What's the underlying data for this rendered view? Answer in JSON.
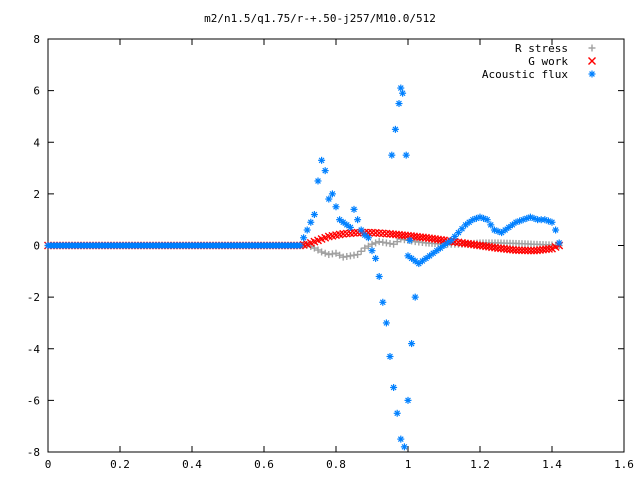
{
  "chart_data": {
    "type": "scatter",
    "title": "m2/n1.5/q1.75/r-+.50-j257/M10.0/512",
    "xlabel": "",
    "ylabel": "",
    "xlim": [
      0,
      1.6
    ],
    "ylim": [
      -8,
      8
    ],
    "xticks": [
      "0",
      "0.2",
      "0.4",
      "0.6",
      "0.8",
      "1",
      "1.2",
      "1.4",
      "1.6"
    ],
    "yticks": [
      "8",
      "6",
      "4",
      "2",
      "0",
      "-2",
      "-4",
      "-6",
      "-8"
    ],
    "grid": false,
    "legend_position": "top-right",
    "series": [
      {
        "name": "R stress",
        "marker": "+",
        "color": "#a0a0a0",
        "points": [
          [
            0,
            0
          ],
          [
            0.1,
            0
          ],
          [
            0.2,
            0
          ],
          [
            0.3,
            0
          ],
          [
            0.4,
            0
          ],
          [
            0.5,
            0
          ],
          [
            0.6,
            0
          ],
          [
            0.7,
            0
          ],
          [
            0.72,
            0.02
          ],
          [
            0.74,
            -0.1
          ],
          [
            0.76,
            -0.25
          ],
          [
            0.78,
            -0.35
          ],
          [
            0.8,
            -0.3
          ],
          [
            0.82,
            -0.45
          ],
          [
            0.84,
            -0.4
          ],
          [
            0.86,
            -0.35
          ],
          [
            0.88,
            -0.1
          ],
          [
            0.9,
            0.05
          ],
          [
            0.92,
            0.15
          ],
          [
            0.94,
            0.1
          ],
          [
            0.96,
            0.05
          ],
          [
            0.98,
            0.25
          ],
          [
            1.0,
            0.2
          ],
          [
            1.02,
            0.15
          ],
          [
            1.05,
            0.1
          ],
          [
            1.1,
            0.05
          ],
          [
            1.15,
            0.05
          ],
          [
            1.2,
            0.1
          ],
          [
            1.25,
            0.1
          ],
          [
            1.3,
            0.08
          ],
          [
            1.35,
            0.05
          ],
          [
            1.4,
            0.02
          ],
          [
            1.42,
            0
          ]
        ]
      },
      {
        "name": "G work",
        "marker": "x",
        "color": "#ff0000",
        "points": [
          [
            0,
            0
          ],
          [
            0.1,
            0
          ],
          [
            0.2,
            0
          ],
          [
            0.3,
            0
          ],
          [
            0.4,
            0
          ],
          [
            0.5,
            0
          ],
          [
            0.6,
            0
          ],
          [
            0.7,
            0
          ],
          [
            0.72,
            0.05
          ],
          [
            0.75,
            0.2
          ],
          [
            0.78,
            0.35
          ],
          [
            0.82,
            0.45
          ],
          [
            0.86,
            0.5
          ],
          [
            0.9,
            0.5
          ],
          [
            0.95,
            0.45
          ],
          [
            1.0,
            0.38
          ],
          [
            1.05,
            0.3
          ],
          [
            1.1,
            0.2
          ],
          [
            1.15,
            0.1
          ],
          [
            1.2,
            0
          ],
          [
            1.25,
            -0.1
          ],
          [
            1.3,
            -0.18
          ],
          [
            1.35,
            -0.2
          ],
          [
            1.4,
            -0.12
          ],
          [
            1.42,
            0
          ]
        ]
      },
      {
        "name": "Acoustic flux",
        "marker": "*",
        "color": "#0080ff",
        "points": [
          [
            0,
            0
          ],
          [
            0.05,
            0
          ],
          [
            0.1,
            0
          ],
          [
            0.15,
            0
          ],
          [
            0.2,
            0
          ],
          [
            0.25,
            0
          ],
          [
            0.3,
            0
          ],
          [
            0.35,
            0
          ],
          [
            0.4,
            0
          ],
          [
            0.45,
            0
          ],
          [
            0.5,
            0
          ],
          [
            0.55,
            0
          ],
          [
            0.6,
            0
          ],
          [
            0.65,
            0
          ],
          [
            0.7,
            0
          ],
          [
            0.71,
            0.3
          ],
          [
            0.72,
            0.6
          ],
          [
            0.73,
            0.9
          ],
          [
            0.74,
            1.2
          ],
          [
            0.75,
            2.5
          ],
          [
            0.76,
            3.3
          ],
          [
            0.77,
            2.9
          ],
          [
            0.78,
            1.8
          ],
          [
            0.79,
            2.0
          ],
          [
            0.8,
            1.5
          ],
          [
            0.81,
            1.0
          ],
          [
            0.82,
            0.9
          ],
          [
            0.83,
            0.8
          ],
          [
            0.84,
            0.7
          ],
          [
            0.85,
            1.4
          ],
          [
            0.86,
            1.0
          ],
          [
            0.87,
            0.6
          ],
          [
            0.88,
            0.4
          ],
          [
            0.89,
            0.3
          ],
          [
            0.9,
            -0.2
          ],
          [
            0.91,
            -0.5
          ],
          [
            0.92,
            -1.2
          ],
          [
            0.93,
            -2.2
          ],
          [
            0.94,
            -3.0
          ],
          [
            0.95,
            -4.3
          ],
          [
            0.96,
            -5.5
          ],
          [
            0.97,
            -6.5
          ],
          [
            0.98,
            -7.5
          ],
          [
            0.99,
            -7.8
          ],
          [
            1.0,
            -6.0
          ],
          [
            1.01,
            -3.8
          ],
          [
            1.02,
            -2.0
          ],
          [
            0.955,
            3.5
          ],
          [
            0.965,
            4.5
          ],
          [
            0.975,
            5.5
          ],
          [
            0.98,
            6.1
          ],
          [
            0.985,
            5.9
          ],
          [
            0.995,
            3.5
          ],
          [
            1.005,
            0.2
          ],
          [
            1.0,
            -0.4
          ],
          [
            1.03,
            -0.7
          ],
          [
            1.05,
            -0.5
          ],
          [
            1.07,
            -0.3
          ],
          [
            1.1,
            0.0
          ],
          [
            1.12,
            0.2
          ],
          [
            1.14,
            0.5
          ],
          [
            1.16,
            0.8
          ],
          [
            1.18,
            1.0
          ],
          [
            1.2,
            1.1
          ],
          [
            1.22,
            1.0
          ],
          [
            1.24,
            0.6
          ],
          [
            1.26,
            0.5
          ],
          [
            1.28,
            0.7
          ],
          [
            1.3,
            0.9
          ],
          [
            1.32,
            1.0
          ],
          [
            1.34,
            1.1
          ],
          [
            1.36,
            1.0
          ],
          [
            1.38,
            1.0
          ],
          [
            1.4,
            0.9
          ],
          [
            1.41,
            0.6
          ],
          [
            1.42,
            0.1
          ]
        ]
      }
    ]
  }
}
